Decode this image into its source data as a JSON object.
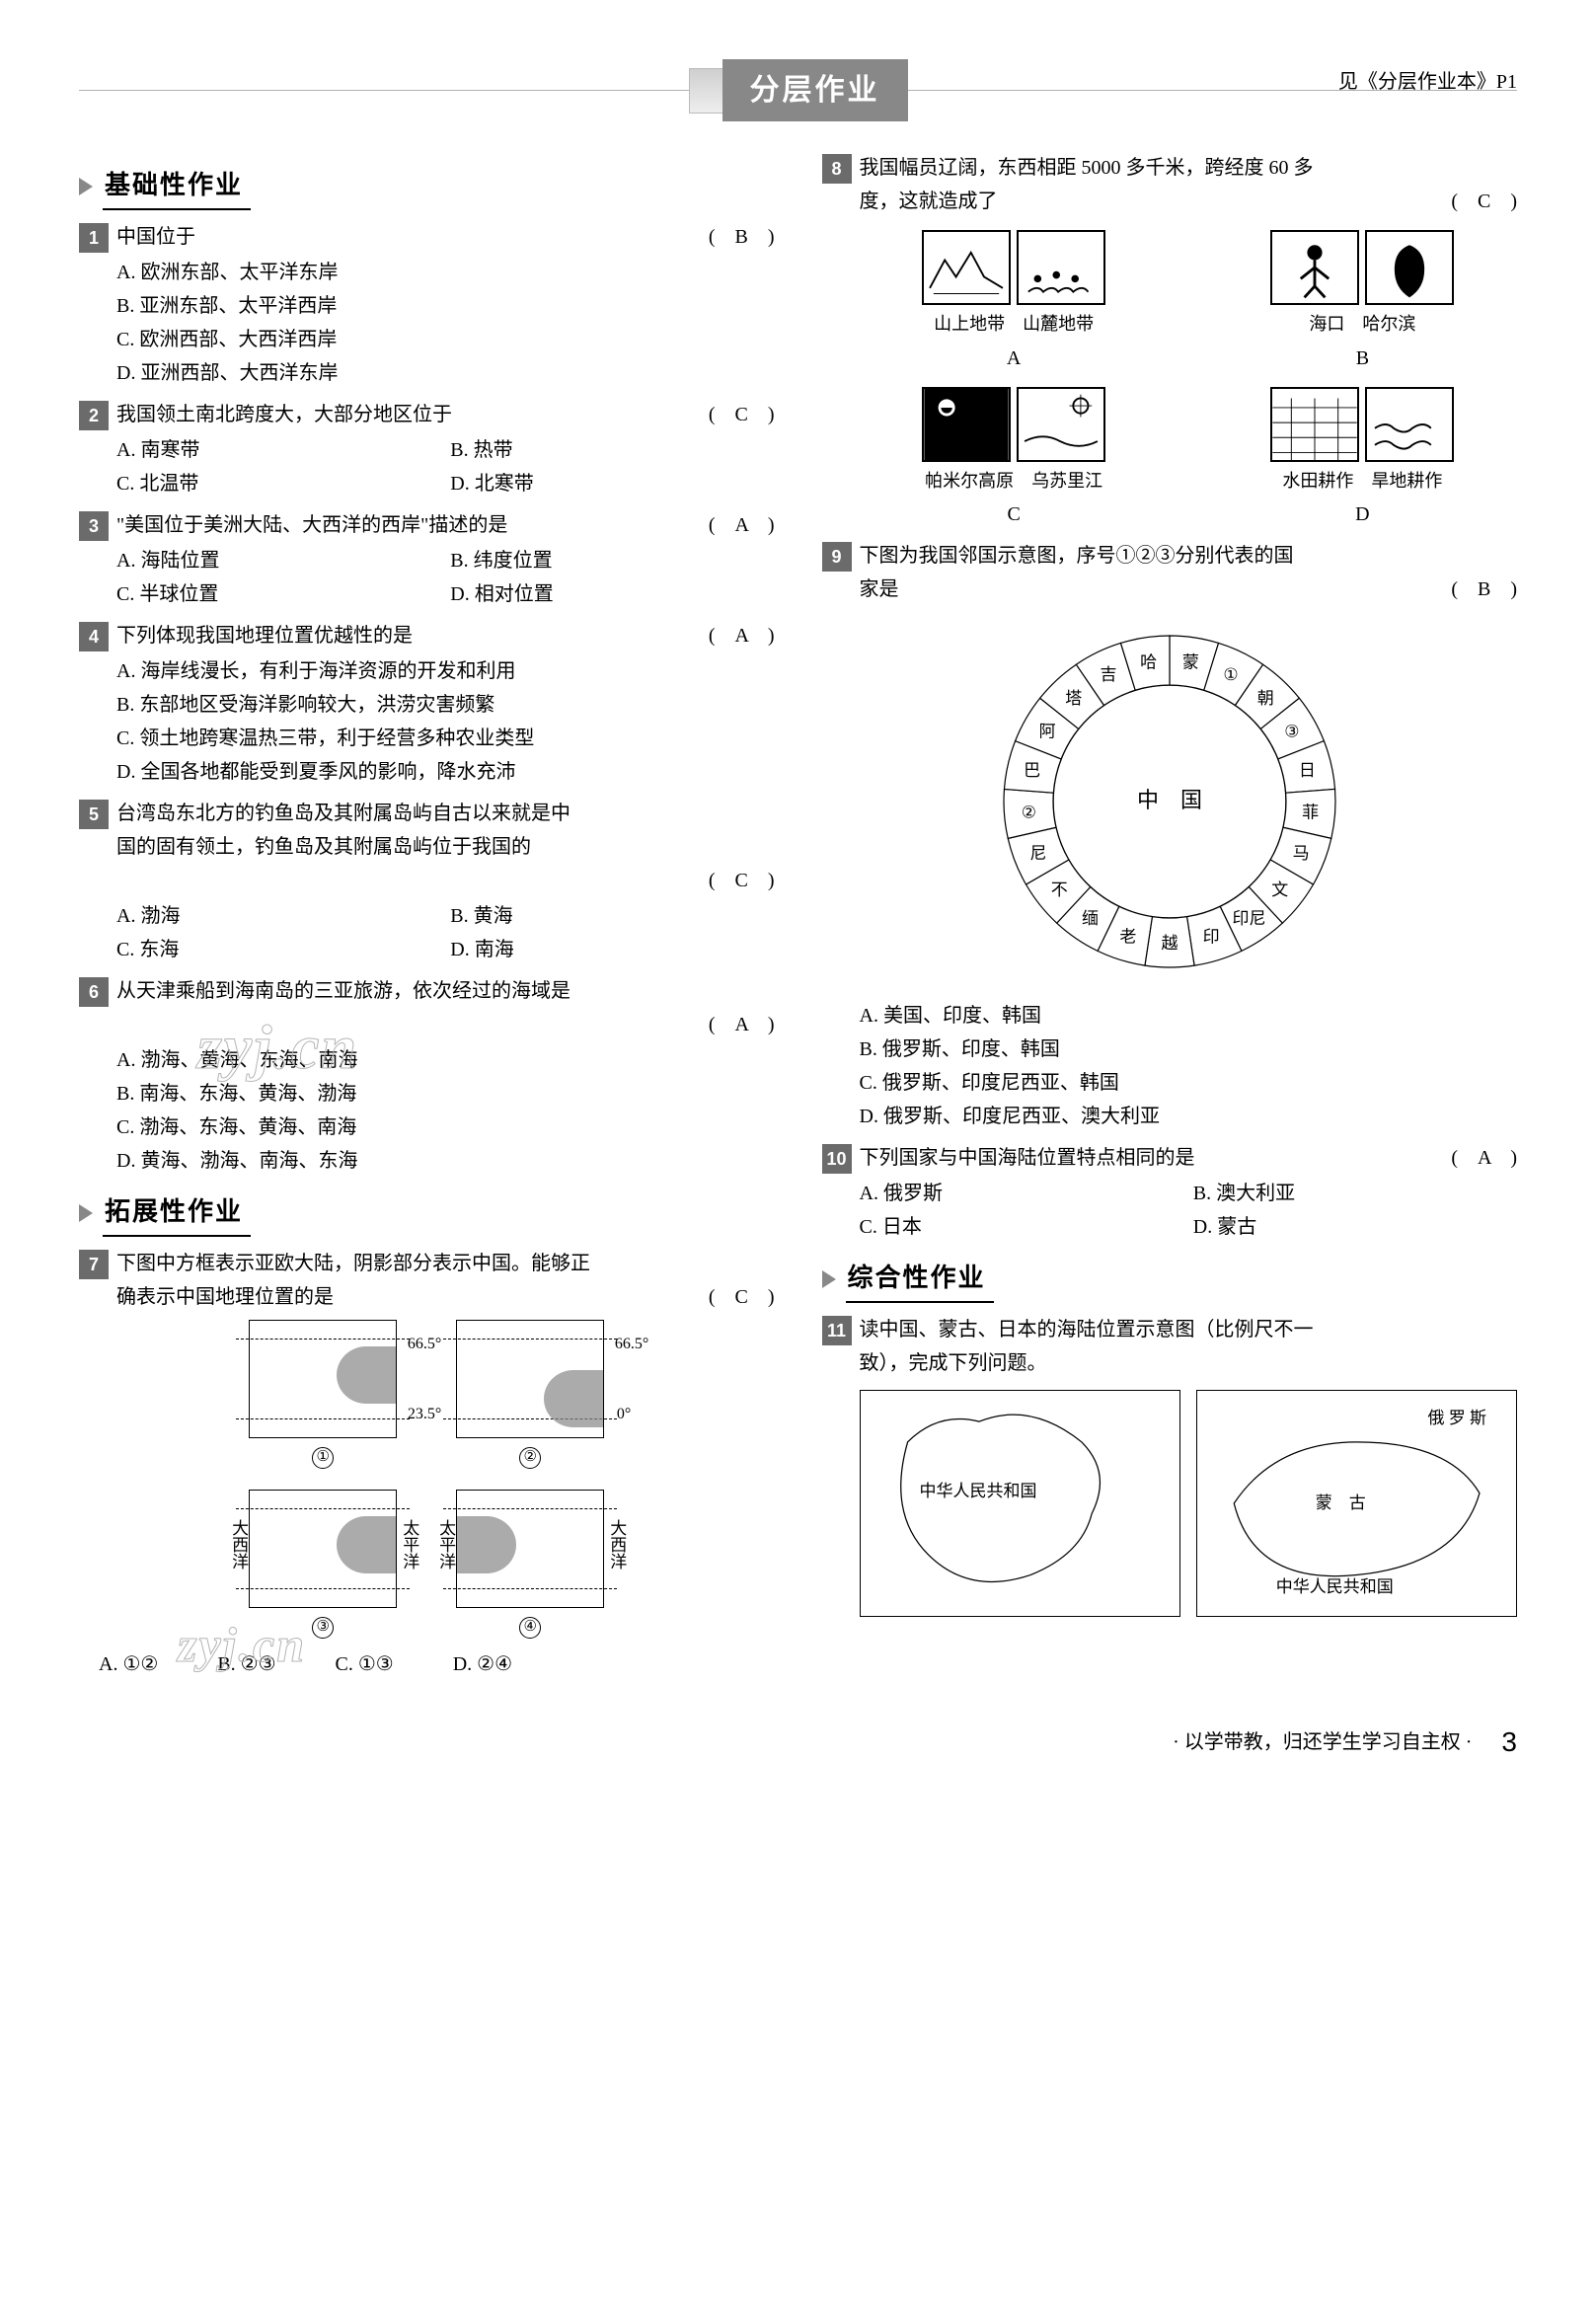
{
  "banner": {
    "title": "分层作业",
    "see_ref": "见《分层作业本》P1"
  },
  "footer": {
    "motto": "· 以学带教，归还学生学习自主权 ·",
    "page": "3"
  },
  "watermark": "zyj.cn",
  "sections": {
    "basic": "基础性作业",
    "extend": "拓展性作业",
    "comp": "综合性作业"
  },
  "q1": {
    "num": "1",
    "stem": "中国位于",
    "answer": "B",
    "opts": [
      "A. 欧洲东部、太平洋东岸",
      "B. 亚洲东部、太平洋西岸",
      "C. 欧洲西部、大西洋西岸",
      "D. 亚洲西部、大西洋东岸"
    ]
  },
  "q2": {
    "num": "2",
    "stem": "我国领土南北跨度大，大部分地区位于",
    "answer": "C",
    "opts": [
      "A. 南寒带",
      "B. 热带",
      "C. 北温带",
      "D. 北寒带"
    ]
  },
  "q3": {
    "num": "3",
    "stem": "\"美国位于美洲大陆、大西洋的西岸\"描述的是",
    "answer": "A",
    "opts": [
      "A. 海陆位置",
      "B. 纬度位置",
      "C. 半球位置",
      "D. 相对位置"
    ]
  },
  "q4": {
    "num": "4",
    "stem": "下列体现我国地理位置优越性的是",
    "answer": "A",
    "opts": [
      "A. 海岸线漫长，有利于海洋资源的开发和利用",
      "B. 东部地区受海洋影响较大，洪涝灾害频繁",
      "C. 领土地跨寒温热三带，利于经营多种农业类型",
      "D. 全国各地都能受到夏季风的影响，降水充沛"
    ]
  },
  "q5": {
    "num": "5",
    "stem1": "台湾岛东北方的钓鱼岛及其附属岛屿自古以来就是中",
    "stem2": "国的固有领土，钓鱼岛及其附属岛屿位于我国的",
    "answer": "C",
    "opts": [
      "A. 渤海",
      "B. 黄海",
      "C. 东海",
      "D. 南海"
    ]
  },
  "q6": {
    "num": "6",
    "stem": "从天津乘船到海南岛的三亚旅游，依次经过的海域是",
    "answer": "A",
    "opts": [
      "A. 渤海、黄海、东海、南海",
      "B. 南海、东海、黄海、渤海",
      "C. 渤海、东海、黄海、南海",
      "D. 黄海、渤海、南海、东海"
    ]
  },
  "q7": {
    "num": "7",
    "stem1": "下图中方框表示亚欧大陆，阴影部分表示中国。能够正",
    "stem2": "确表示中国地理位置的是",
    "answer": "C",
    "labels": {
      "lat665": "66.5°",
      "lat235": "23.5°",
      "lat0": "0°",
      "pacific": "太平洋",
      "atlantic": "大西洋",
      "c1": "①",
      "c2": "②",
      "c3": "③",
      "c4": "④"
    },
    "opts": [
      "A. ①②",
      "B. ②③",
      "C. ①③",
      "D. ②④"
    ]
  },
  "q8": {
    "num": "8",
    "stem1": "我国幅员辽阔，东西相距 5000 多千米，跨经度 60 多",
    "stem2": "度，这就造成了",
    "answer": "C",
    "figs": {
      "a1": "山上地带",
      "a2": "山麓地带",
      "la": "A",
      "b1": "海口",
      "b2": "哈尔滨",
      "lb": "B",
      "c1": "帕米尔高原",
      "c2": "乌苏里江",
      "lc": "C",
      "d1": "水田耕作",
      "d2": "旱地耕作",
      "ld": "D"
    }
  },
  "q9": {
    "num": "9",
    "stem1": "下图为我国邻国示意图，序号①②③分别代表的国",
    "stem2": "家是",
    "answer": "B",
    "ring": {
      "center": "中　国",
      "labels": [
        "蒙",
        "①",
        "朝",
        "③",
        "日",
        "菲",
        "马",
        "文",
        "印尼",
        "印",
        "越",
        "老",
        "缅",
        "不",
        "尼",
        "②",
        "巴",
        "阿",
        "塔",
        "吉",
        "哈"
      ]
    },
    "opts": [
      "A. 美国、印度、韩国",
      "B. 俄罗斯、印度、韩国",
      "C. 俄罗斯、印度尼西亚、韩国",
      "D. 俄罗斯、印度尼西亚、澳大利亚"
    ]
  },
  "q10": {
    "num": "10",
    "stem": "下列国家与中国海陆位置特点相同的是",
    "answer": "A",
    "opts": [
      "A. 俄罗斯",
      "B. 澳大利亚",
      "C. 日本",
      "D. 蒙古"
    ]
  },
  "q11": {
    "num": "11",
    "stem1": "读中国、蒙古、日本的海陆位置示意图（比例尺不一",
    "stem2": "致），完成下列问题。",
    "maps": {
      "m1_label": "中华人民共和国",
      "m2a": "俄 罗 斯",
      "m2b": "蒙　古",
      "m2c": "中华人民共和国"
    }
  }
}
